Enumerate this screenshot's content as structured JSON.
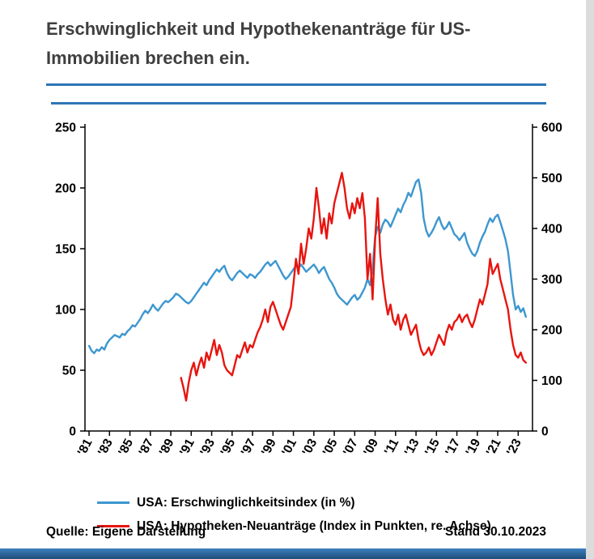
{
  "title": "Erschwinglichkeit und Hypothekenanträge für US-Immobilien brechen ein.",
  "footer": {
    "source": "Quelle: Eigene Darstellung",
    "as_of": "Stand 30.10.2023"
  },
  "colors": {
    "accent_rule": "#2e75b6",
    "bottom_bar": "#2766a3",
    "series_blue": "#3d97d0",
    "series_red": "#e8140f"
  },
  "chart_data": {
    "type": "line",
    "title": "Erschwinglichkeit und Hypothekenanträge für US-Immobilien brechen ein.",
    "x_range": [
      1980.6,
      2024.4
    ],
    "x_step": 0.25,
    "x_tick_years": [
      1981,
      1983,
      1985,
      1987,
      1989,
      1991,
      1993,
      1995,
      1997,
      1999,
      2001,
      2003,
      2005,
      2007,
      2009,
      2011,
      2013,
      2015,
      2017,
      2019,
      2021,
      2023
    ],
    "x_tick_labels": [
      "'81",
      "'83",
      "'85",
      "'87",
      "'89",
      "'91",
      "'93",
      "'95",
      "'97",
      "'99",
      "'01",
      "'03",
      "'05",
      "'07",
      "'09",
      "'11",
      "'13",
      "'15",
      "'17",
      "'19",
      "'21",
      "'23"
    ],
    "left_axis": {
      "min": 0,
      "max": 250,
      "ticks": [
        0,
        50,
        100,
        150,
        200,
        250
      ]
    },
    "right_axis": {
      "min": 0,
      "max": 600,
      "ticks": [
        0,
        100,
        200,
        300,
        400,
        500,
        600
      ]
    },
    "grid": false,
    "legend_position": "bottom-left",
    "series": [
      {
        "name": "USA: Erschwinglichkeitsindex (in %)",
        "axis": "left",
        "color": "#3d97d0",
        "x_start": 1981.0,
        "values": [
          70,
          66,
          64,
          67,
          66,
          69,
          67,
          72,
          75,
          77,
          79,
          78,
          77,
          80,
          79,
          82,
          84,
          87,
          86,
          89,
          92,
          96,
          99,
          97,
          100,
          104,
          101,
          99,
          102,
          105,
          107,
          106,
          108,
          110,
          113,
          112,
          110,
          108,
          106,
          105,
          107,
          110,
          113,
          116,
          119,
          122,
          120,
          124,
          127,
          130,
          133,
          131,
          134,
          136,
          130,
          126,
          124,
          127,
          130,
          132,
          130,
          128,
          126,
          129,
          128,
          126,
          129,
          131,
          134,
          137,
          139,
          136,
          138,
          140,
          136,
          132,
          128,
          125,
          127,
          130,
          133,
          136,
          134,
          137,
          134,
          131,
          133,
          135,
          137,
          134,
          130,
          133,
          135,
          130,
          125,
          122,
          118,
          113,
          110,
          108,
          106,
          104,
          107,
          110,
          112,
          108,
          110,
          114,
          118,
          125,
          120,
          135,
          160,
          168,
          163,
          170,
          174,
          172,
          168,
          173,
          178,
          183,
          180,
          186,
          190,
          196,
          193,
          199,
          205,
          207,
          196,
          175,
          165,
          160,
          163,
          167,
          172,
          176,
          170,
          166,
          168,
          172,
          167,
          162,
          160,
          157,
          160,
          163,
          155,
          150,
          146,
          144,
          148,
          155,
          160,
          164,
          170,
          175,
          172,
          176,
          178,
          172,
          165,
          158,
          148,
          130,
          112,
          100,
          103,
          98,
          101,
          94
        ]
      },
      {
        "name": "USA: Hypotheken-Neuanträge (Index in Punkten, re. Achse)",
        "axis": "right",
        "color": "#e8140f",
        "x_start": 1990.0,
        "values": [
          105,
          85,
          60,
          95,
          120,
          135,
          110,
          130,
          145,
          125,
          155,
          140,
          160,
          180,
          150,
          170,
          155,
          130,
          120,
          115,
          110,
          130,
          150,
          145,
          160,
          175,
          155,
          170,
          165,
          180,
          195,
          205,
          220,
          240,
          215,
          245,
          255,
          240,
          225,
          210,
          200,
          215,
          230,
          245,
          290,
          340,
          310,
          370,
          330,
          360,
          400,
          380,
          420,
          480,
          440,
          390,
          420,
          380,
          430,
          410,
          450,
          470,
          490,
          510,
          480,
          440,
          420,
          450,
          430,
          460,
          440,
          470,
          420,
          300,
          350,
          260,
          380,
          460,
          350,
          300,
          260,
          230,
          250,
          220,
          210,
          230,
          200,
          220,
          230,
          210,
          190,
          200,
          210,
          180,
          160,
          150,
          155,
          165,
          150,
          160,
          175,
          190,
          180,
          170,
          195,
          210,
          200,
          215,
          220,
          230,
          215,
          225,
          230,
          215,
          205,
          220,
          240,
          260,
          250,
          270,
          290,
          340,
          310,
          320,
          330,
          300,
          280,
          260,
          240,
          200,
          170,
          150,
          145,
          155,
          140,
          135
        ]
      }
    ]
  }
}
